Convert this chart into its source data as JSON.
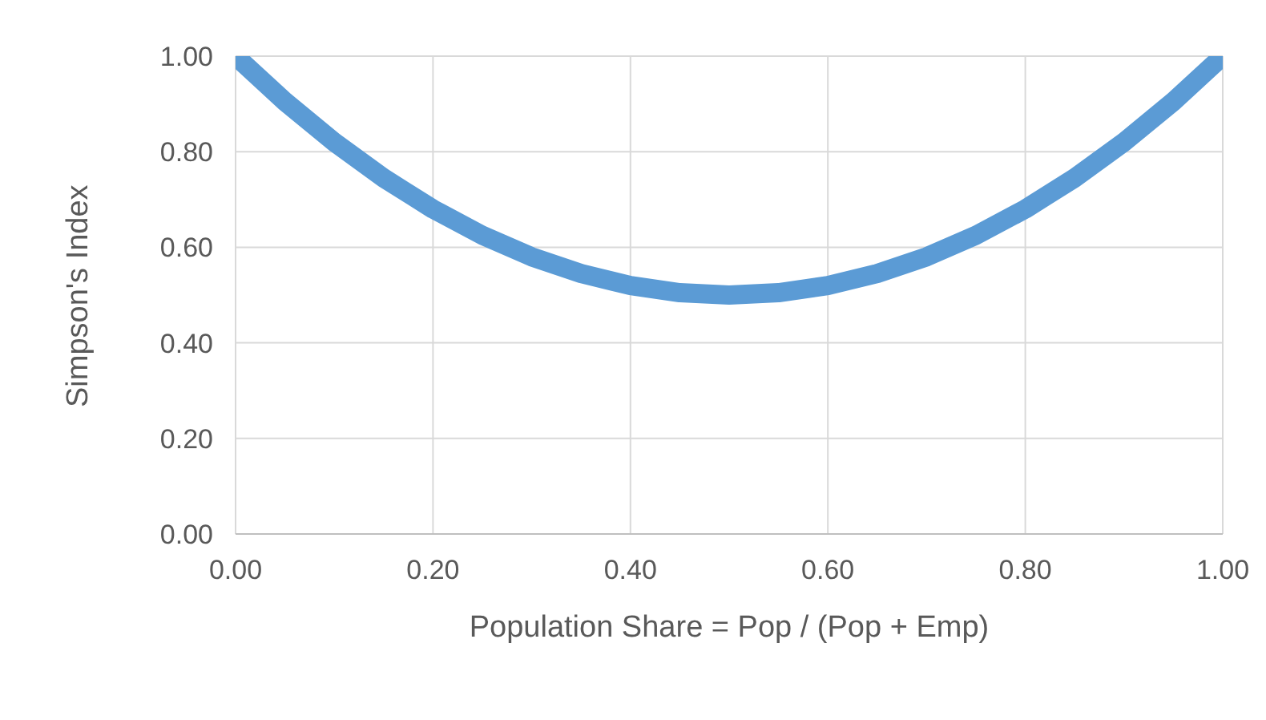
{
  "chart_data": {
    "type": "line",
    "xlabel": "Population Share = Pop / (Pop + Emp)",
    "ylabel": "Simpson's Index",
    "x": [
      0,
      0.05,
      0.1,
      0.15,
      0.2,
      0.25,
      0.3,
      0.35,
      0.4,
      0.45,
      0.5,
      0.55,
      0.6,
      0.65,
      0.7,
      0.75,
      0.8,
      0.85,
      0.9,
      0.95,
      1
    ],
    "series": [
      {
        "color": "#5b9bd5",
        "values": [
          1,
          0.905,
          0.82,
          0.745,
          0.68,
          0.625,
          0.58,
          0.545,
          0.52,
          0.505,
          0.5,
          0.505,
          0.52,
          0.545,
          0.58,
          0.625,
          0.68,
          0.745,
          0.82,
          0.905,
          1
        ]
      }
    ],
    "xlim": [
      0,
      1
    ],
    "xticks": [
      {
        "value": 0,
        "label": "0.00"
      },
      {
        "value": 0.2,
        "label": "0.20"
      },
      {
        "value": 0.4,
        "label": "0.40"
      },
      {
        "value": 0.6,
        "label": "0.60"
      },
      {
        "value": 0.8,
        "label": "0.80"
      },
      {
        "value": 1,
        "label": "1.00"
      }
    ],
    "ylim": [
      0,
      1
    ],
    "yticks": [
      {
        "value": 0,
        "label": "0.00"
      },
      {
        "value": 0.2,
        "label": "0.20"
      },
      {
        "value": 0.4,
        "label": "0.40"
      },
      {
        "value": 0.6,
        "label": "0.60"
      },
      {
        "value": 0.8,
        "label": "0.80"
      },
      {
        "value": 1,
        "label": "1.00"
      }
    ],
    "grid": true,
    "marker": "none",
    "line_style": "solid",
    "legend": false
  }
}
